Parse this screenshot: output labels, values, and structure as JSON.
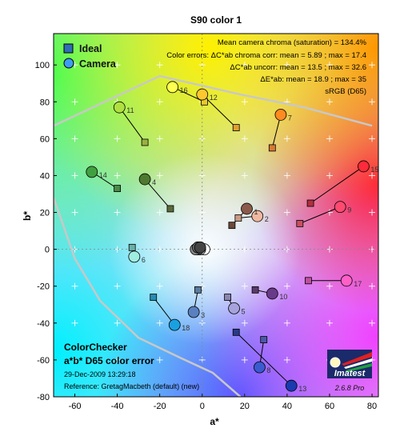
{
  "chart_data": {
    "type": "scatter",
    "title": "S90 color 1",
    "xlabel": "a*",
    "ylabel": "b*",
    "xlim": [
      -70,
      83
    ],
    "ylim": [
      -80,
      117
    ],
    "xticks": [
      -60,
      -40,
      -20,
      0,
      20,
      40,
      60,
      80
    ],
    "yticks": [
      -80,
      -60,
      -40,
      -20,
      0,
      20,
      40,
      60,
      80,
      100
    ],
    "grid": true,
    "legend": {
      "placement": "top-left",
      "entries": [
        {
          "label": "Ideal",
          "marker": "square",
          "color": "#2f6db5"
        },
        {
          "label": "Camera",
          "marker": "circle",
          "color": "#3d9cf2"
        }
      ]
    },
    "info_lines": [
      "Mean camera chroma (saturation) = 134.4%",
      "Color errors:  ΔC*ab chroma corr:  mean = 5.89 ;  max = 17.4",
      "ΔC*ab uncorr:  mean = 13.5 ;  max = 32.6",
      "ΔE*ab:  mean = 18.9 ;  max = 35",
      "sRGB (D65)"
    ],
    "bottom_left": {
      "title_line1": "ColorChecker",
      "title_line2": "a*b* D65 color error",
      "date": "29-Dec-2009 13:29:18",
      "reference": "Reference: GretagMacbeth (default) (new)"
    },
    "logo": {
      "text": "Imatest",
      "version": "2.6.8  Pro"
    },
    "gamut_boundary_gray": [
      [
        -70,
        67
      ],
      [
        -20,
        94
      ],
      [
        18,
        84
      ],
      [
        48,
        77
      ],
      [
        80,
        67
      ]
    ],
    "gamut_boundary_lower": [
      [
        -70,
        28
      ],
      [
        -60,
        -5
      ],
      [
        -48,
        -28
      ],
      [
        -30,
        -48
      ],
      [
        -10,
        -59
      ],
      [
        5,
        -67
      ],
      [
        18,
        -80
      ]
    ],
    "points": [
      {
        "id": "1",
        "ideal": [
          14,
          13
        ],
        "camera": [
          21,
          22
        ],
        "ideal_color": "#6b4a3a",
        "camera_color": "#8a5a4a"
      },
      {
        "id": "2",
        "ideal": [
          17,
          17
        ],
        "camera": [
          26,
          18
        ],
        "ideal_color": "#c89a82",
        "camera_color": "#f0b8a0"
      },
      {
        "id": "3",
        "ideal": [
          -2,
          -22
        ],
        "camera": [
          -4,
          -34
        ],
        "ideal_color": "#5a7aa0",
        "camera_color": "#5a80c0"
      },
      {
        "id": "4",
        "ideal": [
          -15,
          22
        ],
        "camera": [
          -27,
          38
        ],
        "ideal_color": "#5b6a3a",
        "camera_color": "#4e7a30"
      },
      {
        "id": "5",
        "ideal": [
          12,
          -26
        ],
        "camera": [
          15,
          -32
        ],
        "ideal_color": "#8a86b0",
        "camera_color": "#a6a2dc"
      },
      {
        "id": "6",
        "ideal": [
          -33,
          1
        ],
        "camera": [
          -32,
          -4
        ],
        "ideal_color": "#6ab0a8",
        "camera_color": "#a0eee0"
      },
      {
        "id": "7",
        "ideal": [
          33,
          55
        ],
        "camera": [
          37,
          73
        ],
        "ideal_color": "#d87a30",
        "camera_color": "#ff8a20"
      },
      {
        "id": "8",
        "ideal": [
          29,
          -49
        ],
        "camera": [
          27,
          -64
        ],
        "ideal_color": "#4a5aa8",
        "camera_color": "#3a5ad0"
      },
      {
        "id": "9",
        "ideal": [
          46,
          14
        ],
        "camera": [
          65,
          23
        ],
        "ideal_color": "#c85060",
        "camera_color": "#ff4a70"
      },
      {
        "id": "10",
        "ideal": [
          25,
          -22
        ],
        "camera": [
          33,
          -24
        ],
        "ideal_color": "#5a3a6a",
        "camera_color": "#6a3a8a"
      },
      {
        "id": "11",
        "ideal": [
          -27,
          58
        ],
        "camera": [
          -39,
          77
        ],
        "ideal_color": "#9ab040",
        "camera_color": "#b0e040"
      },
      {
        "id": "12",
        "ideal": [
          16,
          66
        ],
        "camera": [
          0,
          84
        ],
        "ideal_color": "#e0a030",
        "camera_color": "#ffc830"
      },
      {
        "id": "13",
        "ideal": [
          16,
          -45
        ],
        "camera": [
          42,
          -74
        ],
        "ideal_color": "#2a3a8a",
        "camera_color": "#1a3ab0"
      },
      {
        "id": "14",
        "ideal": [
          -40,
          33
        ],
        "camera": [
          -52,
          42
        ],
        "ideal_color": "#4a8a4a",
        "camera_color": "#40a040"
      },
      {
        "id": "15",
        "ideal": [
          51,
          25
        ],
        "camera": [
          76,
          45
        ],
        "ideal_color": "#b03040",
        "camera_color": "#ff2a3a"
      },
      {
        "id": "16",
        "ideal": [
          1,
          80
        ],
        "camera": [
          -14,
          88
        ],
        "ideal_color": "#e8c830",
        "camera_color": "#ffff50"
      },
      {
        "id": "17",
        "ideal": [
          50,
          -17
        ],
        "camera": [
          68,
          -17
        ],
        "ideal_color": "#c050a0",
        "camera_color": "#ff60c8"
      },
      {
        "id": "18",
        "ideal": [
          -23,
          -26
        ],
        "camera": [
          -13,
          -41
        ],
        "ideal_color": "#2a8ab0",
        "camera_color": "#1aa0e0"
      },
      {
        "id": "19",
        "ideal": [
          0,
          0
        ],
        "camera": [
          1,
          0
        ],
        "ideal_color": "#f0f0f0",
        "camera_color": "#ffffff"
      },
      {
        "id": "20",
        "ideal": [
          0,
          0
        ],
        "camera": [
          -1,
          0
        ],
        "ideal_color": "#c8c8c8",
        "camera_color": "#d8d8d8"
      },
      {
        "id": "21",
        "ideal": [
          0,
          0
        ],
        "camera": [
          -2,
          0
        ],
        "ideal_color": "#a0a0a0",
        "camera_color": "#b0b0b0"
      },
      {
        "id": "22",
        "ideal": [
          0,
          0
        ],
        "camera": [
          -3,
          0
        ],
        "ideal_color": "#787878",
        "camera_color": "#888888"
      },
      {
        "id": "23",
        "ideal": [
          0,
          0
        ],
        "camera": [
          -2,
          1
        ],
        "ideal_color": "#555555",
        "camera_color": "#666666"
      },
      {
        "id": "24",
        "ideal": [
          0,
          0
        ],
        "camera": [
          -1,
          1
        ],
        "ideal_color": "#333333",
        "camera_color": "#444444"
      }
    ],
    "visible_point_labels": [
      "1",
      "2",
      "3",
      "4",
      "5",
      "6",
      "7",
      "8",
      "9",
      "10",
      "11",
      "12",
      "13",
      "14",
      "15",
      "16",
      "17",
      "18"
    ]
  }
}
